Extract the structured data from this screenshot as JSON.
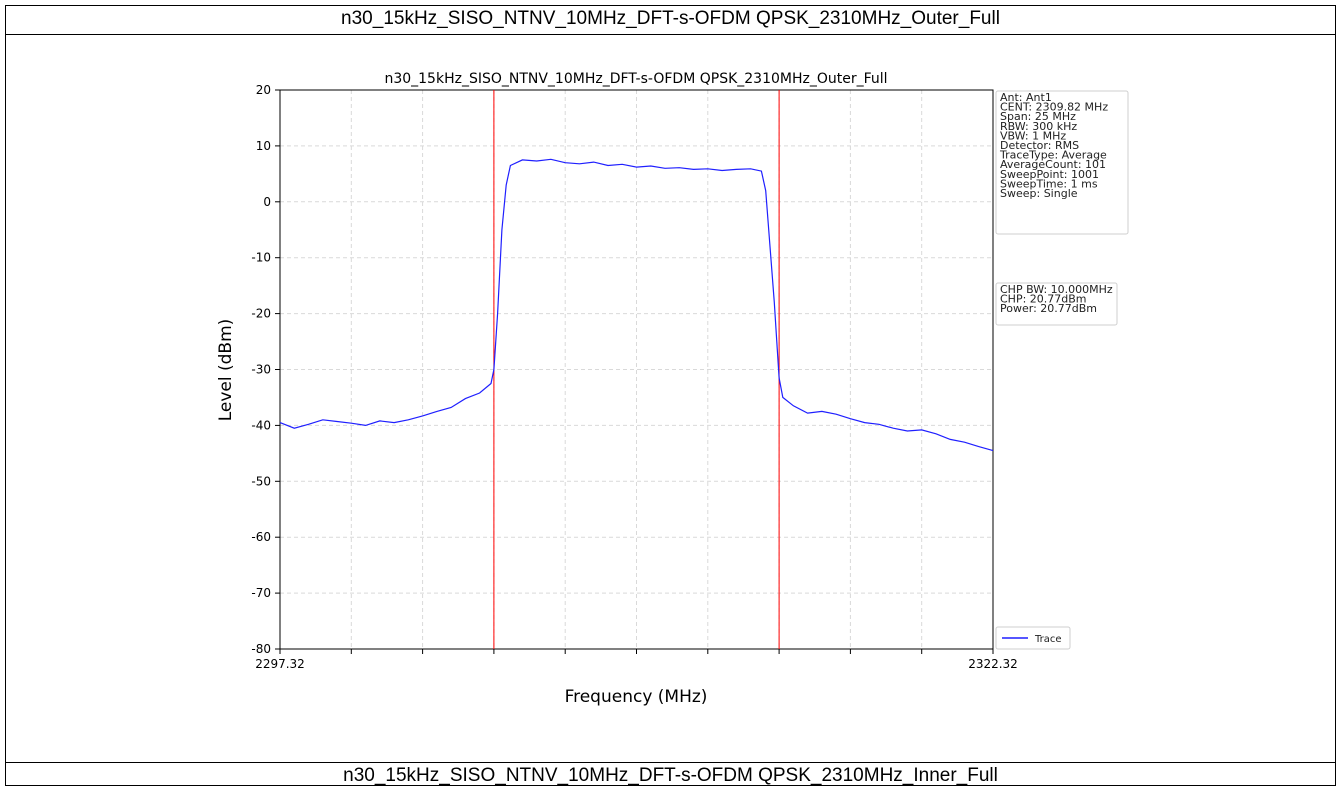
{
  "table": {
    "caption_top": "n30_15kHz_SISO_NTNV_10MHz_DFT-s-OFDM QPSK_2310MHz_Outer_Full",
    "caption_bottom": "n30_15kHz_SISO_NTNV_10MHz_DFT-s-OFDM QPSK_2310MHz_Inner_Full"
  },
  "chart_data": {
    "type": "line",
    "title": "n30_15kHz_SISO_NTNV_10MHz_DFT-s-OFDM QPSK_2310MHz_Outer_Full",
    "xlabel": "Frequency (MHz)",
    "ylabel": "Level (dBm)",
    "xlim": [
      2297.32,
      2322.32
    ],
    "ylim": [
      -80,
      20
    ],
    "x_tick_labels": [
      "2297.32",
      "2322.32"
    ],
    "y_ticks": [
      20,
      10,
      0,
      -10,
      -20,
      -30,
      -40,
      -50,
      -60,
      -70,
      -80
    ],
    "grid": true,
    "legend_position": "bottom-right",
    "markers": {
      "color": "#ff0000",
      "x": [
        2304.82,
        2314.82
      ]
    },
    "info_box": [
      "Ant: Ant1",
      "CENT: 2309.82 MHz",
      "Span: 25 MHz",
      "RBW: 300 kHz",
      "VBW: 1 MHz",
      "Detector: RMS",
      "TraceType: Average",
      "AverageCount: 101",
      "SweepPoint: 1001",
      "SweepTime: 1 ms",
      "Sweep: Single"
    ],
    "power_box": [
      "CHP BW: 10.000MHz",
      "CHP: 20.77dBm",
      "Power: 20.77dBm"
    ],
    "series": [
      {
        "name": "Trace",
        "color": "#1f1fff",
        "points": [
          [
            2297.32,
            -39.5
          ],
          [
            2297.82,
            -40.5
          ],
          [
            2298.32,
            -39.8
          ],
          [
            2298.82,
            -39.0
          ],
          [
            2299.32,
            -39.3
          ],
          [
            2299.82,
            -39.6
          ],
          [
            2300.32,
            -40.0
          ],
          [
            2300.82,
            -39.2
          ],
          [
            2301.32,
            -39.5
          ],
          [
            2301.82,
            -39.0
          ],
          [
            2302.32,
            -38.3
          ],
          [
            2302.82,
            -37.5
          ],
          [
            2303.32,
            -36.8
          ],
          [
            2303.82,
            -35.2
          ],
          [
            2304.32,
            -34.2
          ],
          [
            2304.72,
            -32.5
          ],
          [
            2304.82,
            -30.0
          ],
          [
            2304.95,
            -20.0
          ],
          [
            2305.1,
            -5.0
          ],
          [
            2305.25,
            3.0
          ],
          [
            2305.4,
            6.5
          ],
          [
            2305.82,
            7.5
          ],
          [
            2306.32,
            7.3
          ],
          [
            2306.82,
            7.6
          ],
          [
            2307.32,
            7.0
          ],
          [
            2307.82,
            6.8
          ],
          [
            2308.32,
            7.1
          ],
          [
            2308.82,
            6.5
          ],
          [
            2309.32,
            6.7
          ],
          [
            2309.82,
            6.2
          ],
          [
            2310.32,
            6.4
          ],
          [
            2310.82,
            6.0
          ],
          [
            2311.32,
            6.1
          ],
          [
            2311.82,
            5.8
          ],
          [
            2312.32,
            5.9
          ],
          [
            2312.82,
            5.6
          ],
          [
            2313.32,
            5.8
          ],
          [
            2313.82,
            5.9
          ],
          [
            2314.2,
            5.5
          ],
          [
            2314.35,
            2.0
          ],
          [
            2314.5,
            -8.0
          ],
          [
            2314.65,
            -18.0
          ],
          [
            2314.82,
            -31.5
          ],
          [
            2314.95,
            -35.0
          ],
          [
            2315.32,
            -36.5
          ],
          [
            2315.82,
            -37.8
          ],
          [
            2316.32,
            -37.5
          ],
          [
            2316.82,
            -38.0
          ],
          [
            2317.32,
            -38.8
          ],
          [
            2317.82,
            -39.5
          ],
          [
            2318.32,
            -39.8
          ],
          [
            2318.82,
            -40.5
          ],
          [
            2319.32,
            -41.0
          ],
          [
            2319.82,
            -40.8
          ],
          [
            2320.32,
            -41.5
          ],
          [
            2320.82,
            -42.5
          ],
          [
            2321.32,
            -43.0
          ],
          [
            2321.82,
            -43.8
          ],
          [
            2322.32,
            -44.5
          ]
        ]
      }
    ]
  }
}
